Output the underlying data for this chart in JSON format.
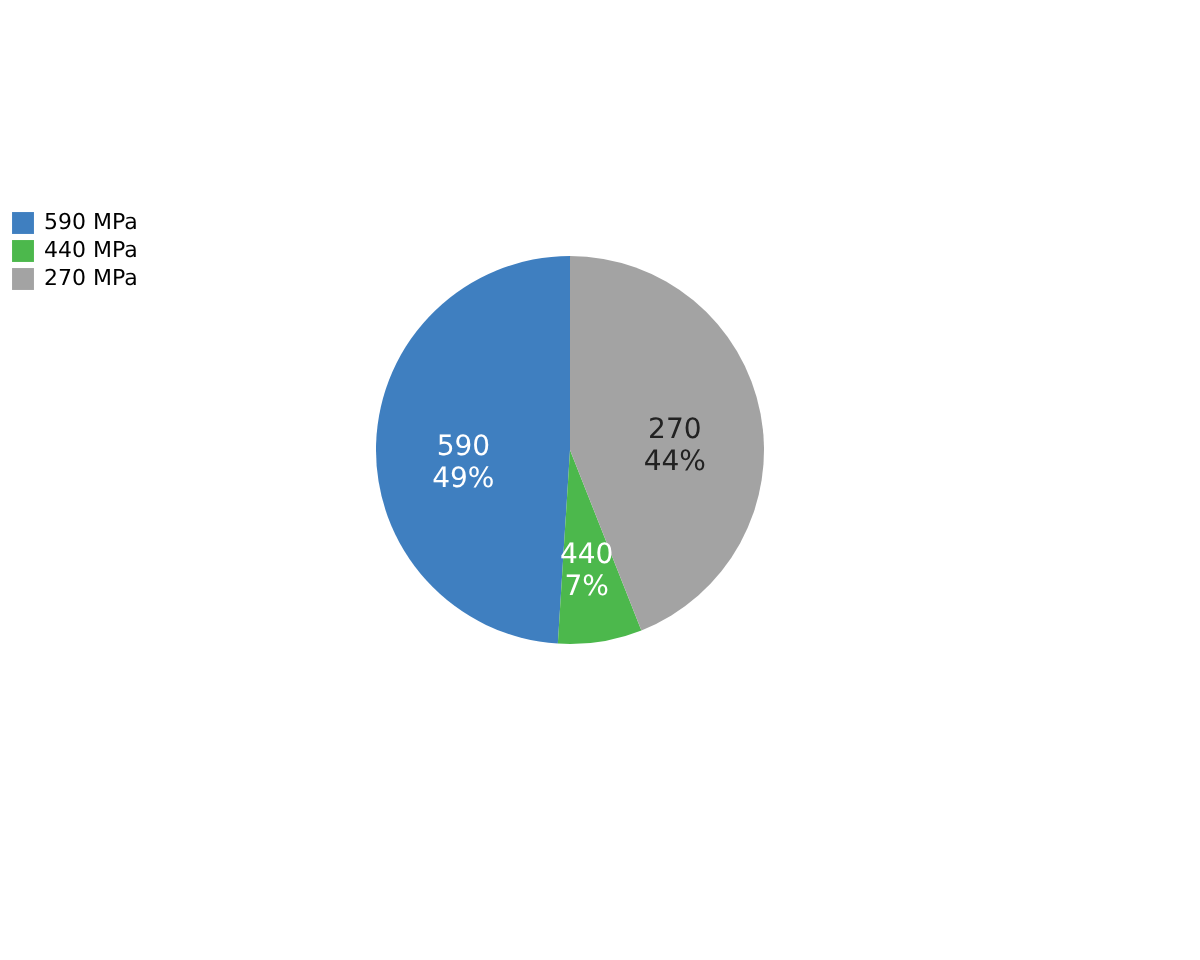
{
  "chart_data": {
    "type": "pie",
    "categories": [
      "590 MPa",
      "440 MPa",
      "270 MPa"
    ],
    "values": [
      49,
      7,
      44
    ],
    "colors": [
      "#3f7fc0",
      "#4cb84c",
      "#a3a3a3"
    ],
    "value_labels": [
      "590\n49%",
      "440\n7%",
      "270\n44%"
    ],
    "legend": "top left"
  }
}
